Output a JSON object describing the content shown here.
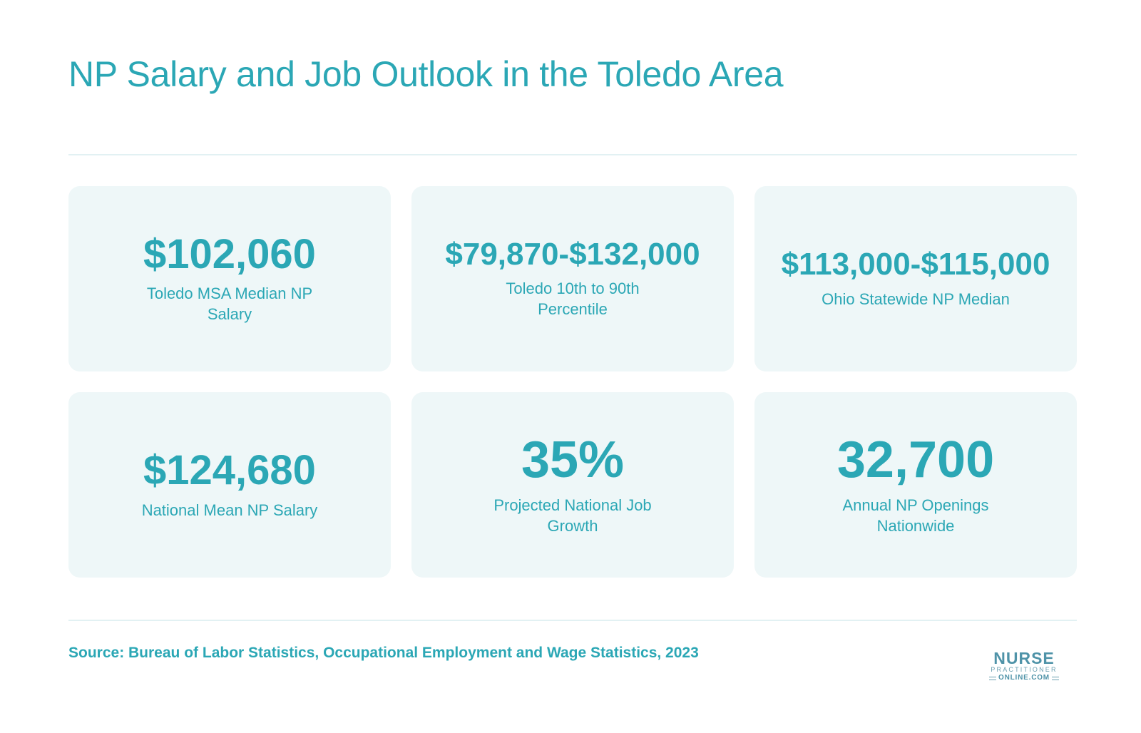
{
  "title": "NP Salary and Job Outlook in the Toledo Area",
  "cards": [
    {
      "value": "$102,060",
      "label": "Toledo MSA Median NP Salary"
    },
    {
      "value": "$79,870-$132,000",
      "label": "Toledo 10th to 90th Percentile"
    },
    {
      "value": "$113,000-$115,000",
      "label": "Ohio Statewide NP Median"
    },
    {
      "value": "$124,680",
      "label": "National Mean NP Salary"
    },
    {
      "value": "35%",
      "label": "Projected National Job Growth"
    },
    {
      "value": "32,700",
      "label": "Annual NP Openings Nationwide"
    }
  ],
  "source": "Source: Bureau of Labor Statistics, Occupational Employment and Wage Statistics, 2023",
  "logo": {
    "line1": "NURSE",
    "line2": "PRACTITIONER",
    "line3": "ONLINE.COM"
  },
  "colors": {
    "accent": "#2ba7b5",
    "card_bg": "#eef7f8",
    "rule": "#e2f1f3"
  }
}
